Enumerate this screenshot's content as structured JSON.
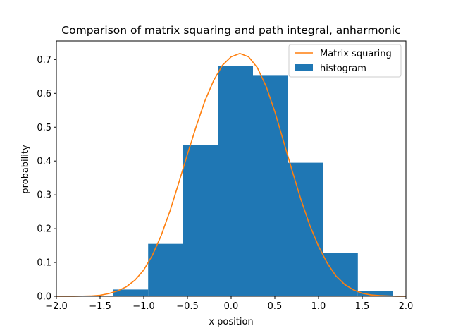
{
  "chart_data": {
    "type": "bar",
    "title": "Comparison of matrix squaring and path integral, anharmonic",
    "xlabel": "x position",
    "ylabel": "probability",
    "xlim": [
      -2.0,
      2.0
    ],
    "ylim": [
      0.0,
      0.755
    ],
    "xticks": [
      "−2.0",
      "−1.5",
      "−1.0",
      "−0.5",
      "0.0",
      "0.5",
      "1.0",
      "1.5",
      "2.0"
    ],
    "xtick_values": [
      -2.0,
      -1.5,
      -1.0,
      -0.5,
      0.0,
      0.5,
      1.0,
      1.5,
      2.0
    ],
    "yticks": [
      "0.0",
      "0.1",
      "0.2",
      "0.3",
      "0.4",
      "0.5",
      "0.6",
      "0.7"
    ],
    "ytick_values": [
      0.0,
      0.1,
      0.2,
      0.3,
      0.4,
      0.5,
      0.6,
      0.7
    ],
    "grid": false,
    "legend_position": "top-right",
    "colors": {
      "histogram": "#1f77b4",
      "line": "#ff7f0e"
    },
    "series": [
      {
        "name": "Matrix squaring",
        "kind": "line",
        "x": [
          -2.0,
          -1.9,
          -1.8,
          -1.7,
          -1.6,
          -1.5,
          -1.4,
          -1.3,
          -1.2,
          -1.1,
          -1.0,
          -0.9,
          -0.8,
          -0.7,
          -0.6,
          -0.5,
          -0.4,
          -0.3,
          -0.2,
          -0.1,
          0.0,
          0.1,
          0.2,
          0.3,
          0.4,
          0.5,
          0.6,
          0.7,
          0.8,
          0.9,
          1.0,
          1.1,
          1.2,
          1.3,
          1.4,
          1.5,
          1.6,
          1.7,
          1.8,
          1.9,
          2.0
        ],
        "y": [
          0.0,
          0.0,
          0.0,
          0.0005,
          0.001,
          0.003,
          0.008,
          0.016,
          0.028,
          0.048,
          0.078,
          0.122,
          0.18,
          0.252,
          0.335,
          0.42,
          0.502,
          0.578,
          0.638,
          0.683,
          0.708,
          0.718,
          0.708,
          0.676,
          0.621,
          0.546,
          0.458,
          0.37,
          0.285,
          0.21,
          0.148,
          0.098,
          0.06,
          0.035,
          0.019,
          0.009,
          0.004,
          0.002,
          0.001,
          0.0,
          0.0
        ]
      },
      {
        "name": "histogram",
        "kind": "bar",
        "bin_edges": [
          -1.35,
          -0.95,
          -0.55,
          -0.15,
          0.25,
          0.65,
          1.05,
          1.45,
          1.85
        ],
        "values": [
          0.02,
          0.155,
          0.447,
          0.682,
          0.652,
          0.395,
          0.128,
          0.016
        ]
      }
    ]
  }
}
